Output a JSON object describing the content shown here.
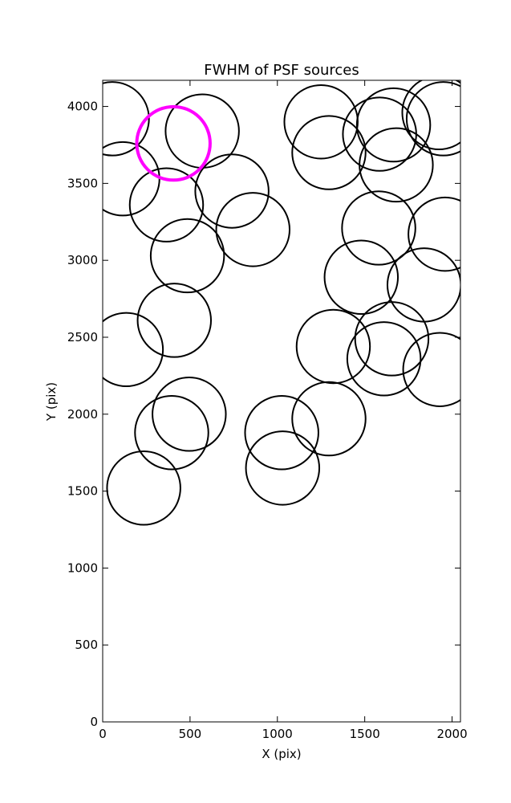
{
  "chart_data": {
    "type": "scatter",
    "title": "FWHM of PSF sources",
    "xlabel": "X (pix)",
    "ylabel": "Y (pix)",
    "xlim": [
      0,
      2048
    ],
    "ylim": [
      0,
      4170
    ],
    "xticks": [
      0,
      500,
      1000,
      1500,
      2000
    ],
    "yticks": [
      0,
      500,
      1000,
      1500,
      2000,
      2500,
      3000,
      3500,
      4000
    ],
    "marker": "circle",
    "marker_radius_data_units": 210,
    "grid": false,
    "colors": {
      "default": "#000000",
      "highlight": "#ff00ff"
    },
    "series": [
      {
        "points": [
          {
            "x": 55,
            "y": 3920
          },
          {
            "x": 570,
            "y": 3840
          },
          {
            "x": 115,
            "y": 3530
          },
          {
            "x": 365,
            "y": 3360
          },
          {
            "x": 740,
            "y": 3450
          },
          {
            "x": 860,
            "y": 3200
          },
          {
            "x": 485,
            "y": 3030
          },
          {
            "x": 410,
            "y": 2610
          },
          {
            "x": 135,
            "y": 2420
          },
          {
            "x": 495,
            "y": 2000
          },
          {
            "x": 395,
            "y": 1880
          },
          {
            "x": 235,
            "y": 1520
          },
          {
            "x": 1025,
            "y": 1880
          },
          {
            "x": 1030,
            "y": 1650
          },
          {
            "x": 1295,
            "y": 1970
          },
          {
            "x": 1320,
            "y": 2440
          },
          {
            "x": 1250,
            "y": 3900
          },
          {
            "x": 1295,
            "y": 3700
          },
          {
            "x": 1585,
            "y": 3820
          },
          {
            "x": 1665,
            "y": 3880
          },
          {
            "x": 1680,
            "y": 3620
          },
          {
            "x": 1925,
            "y": 3960
          },
          {
            "x": 1950,
            "y": 3920
          },
          {
            "x": 1580,
            "y": 3210
          },
          {
            "x": 1960,
            "y": 3170
          },
          {
            "x": 1480,
            "y": 2890
          },
          {
            "x": 1840,
            "y": 2840
          },
          {
            "x": 1655,
            "y": 2490
          },
          {
            "x": 1610,
            "y": 2360
          },
          {
            "x": 1930,
            "y": 2290
          }
        ]
      },
      {
        "highlight": true,
        "points": [
          {
            "x": 405,
            "y": 3760
          }
        ]
      }
    ]
  }
}
